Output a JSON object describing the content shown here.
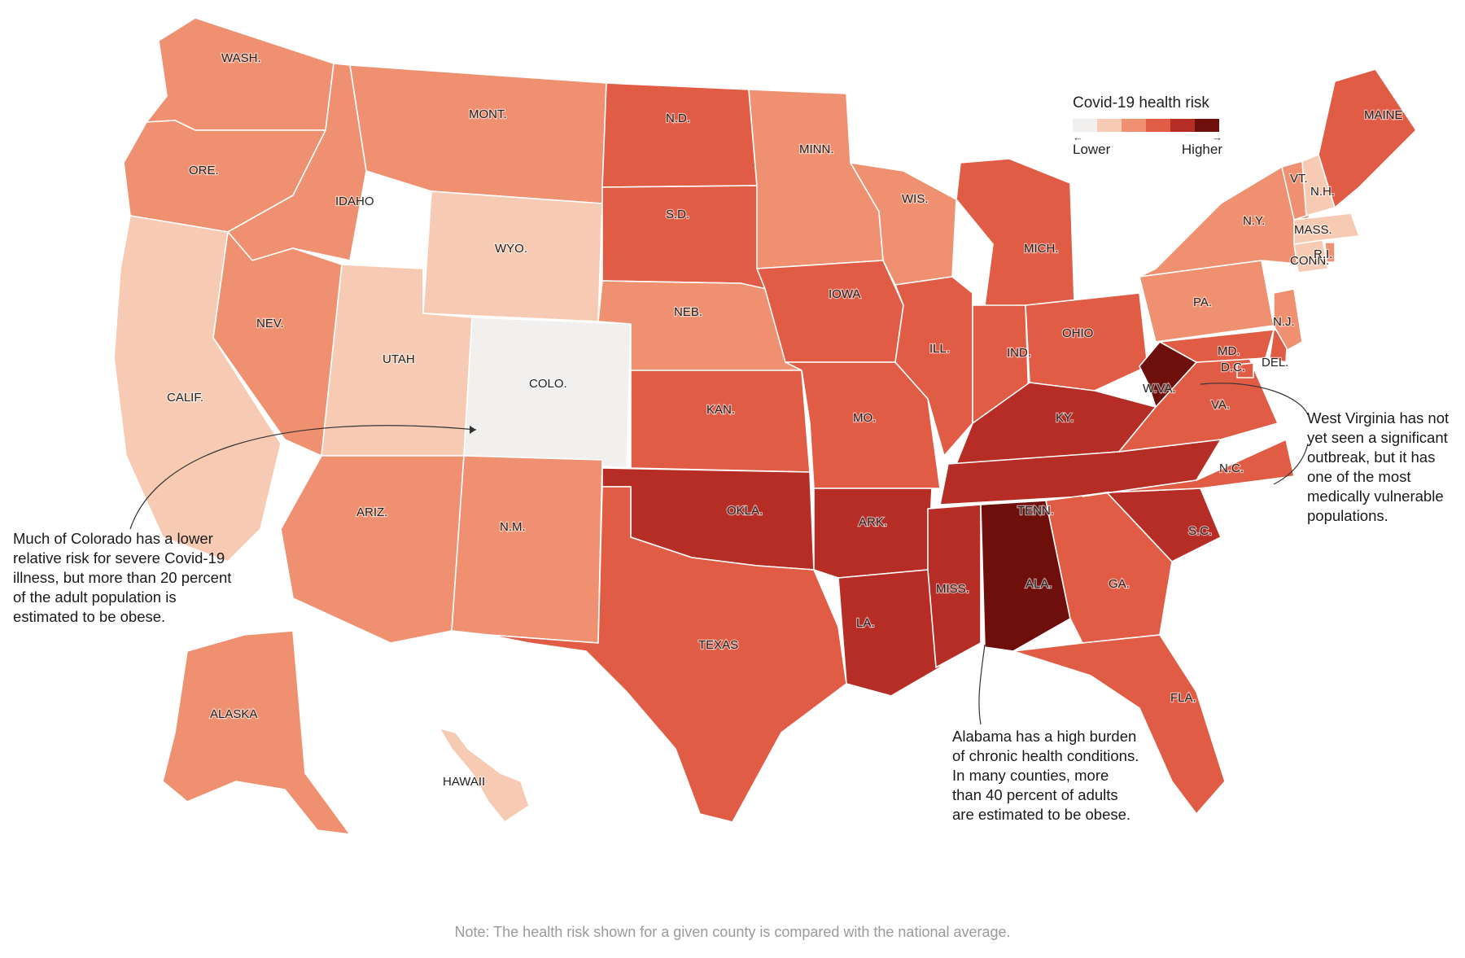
{
  "legend": {
    "title": "Covid-19 health risk",
    "low_label": "Lower",
    "high_label": "Higher",
    "scale": [
      "#f2f0ef",
      "#f7cbb3",
      "#ef9070",
      "#e05c45",
      "#b52d25",
      "#6e0f0b"
    ]
  },
  "states": [
    {
      "label": "WASH.",
      "risk": 2
    },
    {
      "label": "ORE.",
      "risk": 2
    },
    {
      "label": "CALIF.",
      "risk": 1
    },
    {
      "label": "IDAHO",
      "risk": 2
    },
    {
      "label": "NEV.",
      "risk": 2
    },
    {
      "label": "MONT.",
      "risk": 2
    },
    {
      "label": "WYO.",
      "risk": 1
    },
    {
      "label": "UTAH",
      "risk": 1
    },
    {
      "label": "COLO.",
      "risk": 0
    },
    {
      "label": "ARIZ.",
      "risk": 2
    },
    {
      "label": "N.M.",
      "risk": 2
    },
    {
      "label": "N.D.",
      "risk": 3
    },
    {
      "label": "S.D.",
      "risk": 3
    },
    {
      "label": "NEB.",
      "risk": 2
    },
    {
      "label": "KAN.",
      "risk": 3
    },
    {
      "label": "OKLA.",
      "risk": 4
    },
    {
      "label": "TEXAS",
      "risk": 3
    },
    {
      "label": "MINN.",
      "risk": 2
    },
    {
      "label": "IOWA",
      "risk": 3
    },
    {
      "label": "MO.",
      "risk": 3
    },
    {
      "label": "ARK.",
      "risk": 4
    },
    {
      "label": "LA.",
      "risk": 4
    },
    {
      "label": "WIS.",
      "risk": 2
    },
    {
      "label": "ILL.",
      "risk": 3
    },
    {
      "label": "MICH.",
      "risk": 3
    },
    {
      "label": "IND.",
      "risk": 3
    },
    {
      "label": "OHIO",
      "risk": 3
    },
    {
      "label": "KY.",
      "risk": 4
    },
    {
      "label": "TENN.",
      "risk": 4
    },
    {
      "label": "MISS.",
      "risk": 4
    },
    {
      "label": "ALA.",
      "risk": 5
    },
    {
      "label": "GA.",
      "risk": 3
    },
    {
      "label": "FLA.",
      "risk": 3
    },
    {
      "label": "S.C.",
      "risk": 4
    },
    {
      "label": "N.C.",
      "risk": 3
    },
    {
      "label": "VA.",
      "risk": 3
    },
    {
      "label": "W.VA.",
      "risk": 5
    },
    {
      "label": "PA.",
      "risk": 2
    },
    {
      "label": "N.Y.",
      "risk": 2
    },
    {
      "label": "MD.",
      "risk": 3
    },
    {
      "label": "D.C.",
      "risk": 3
    },
    {
      "label": "DEL.",
      "risk": 3
    },
    {
      "label": "N.J.",
      "risk": 2
    },
    {
      "label": "CONN.",
      "risk": 1
    },
    {
      "label": "R.I.",
      "risk": 2
    },
    {
      "label": "MASS.",
      "risk": 1
    },
    {
      "label": "VT.",
      "risk": 2
    },
    {
      "label": "N.H.",
      "risk": 1
    },
    {
      "label": "MAINE",
      "risk": 3
    },
    {
      "label": "ALASKA",
      "risk": 2
    },
    {
      "label": "HAWAII",
      "risk": 1
    }
  ],
  "annotations": {
    "colorado": "Much of Colorado has a lower relative risk for severe Covid-19 illness, but more than 20 percent of the adult population is estimated to be obese.",
    "west_virginia": "West Virginia has not yet seen a significant outbreak, but it has one of the most medically vulnerable populations.",
    "alabama": "Alabama has a high burden of chronic health conditions. In many counties, more than 40 percent of adults are estimated to be obese."
  },
  "note": "Note: The health risk shown for a given county is compared with the national average."
}
